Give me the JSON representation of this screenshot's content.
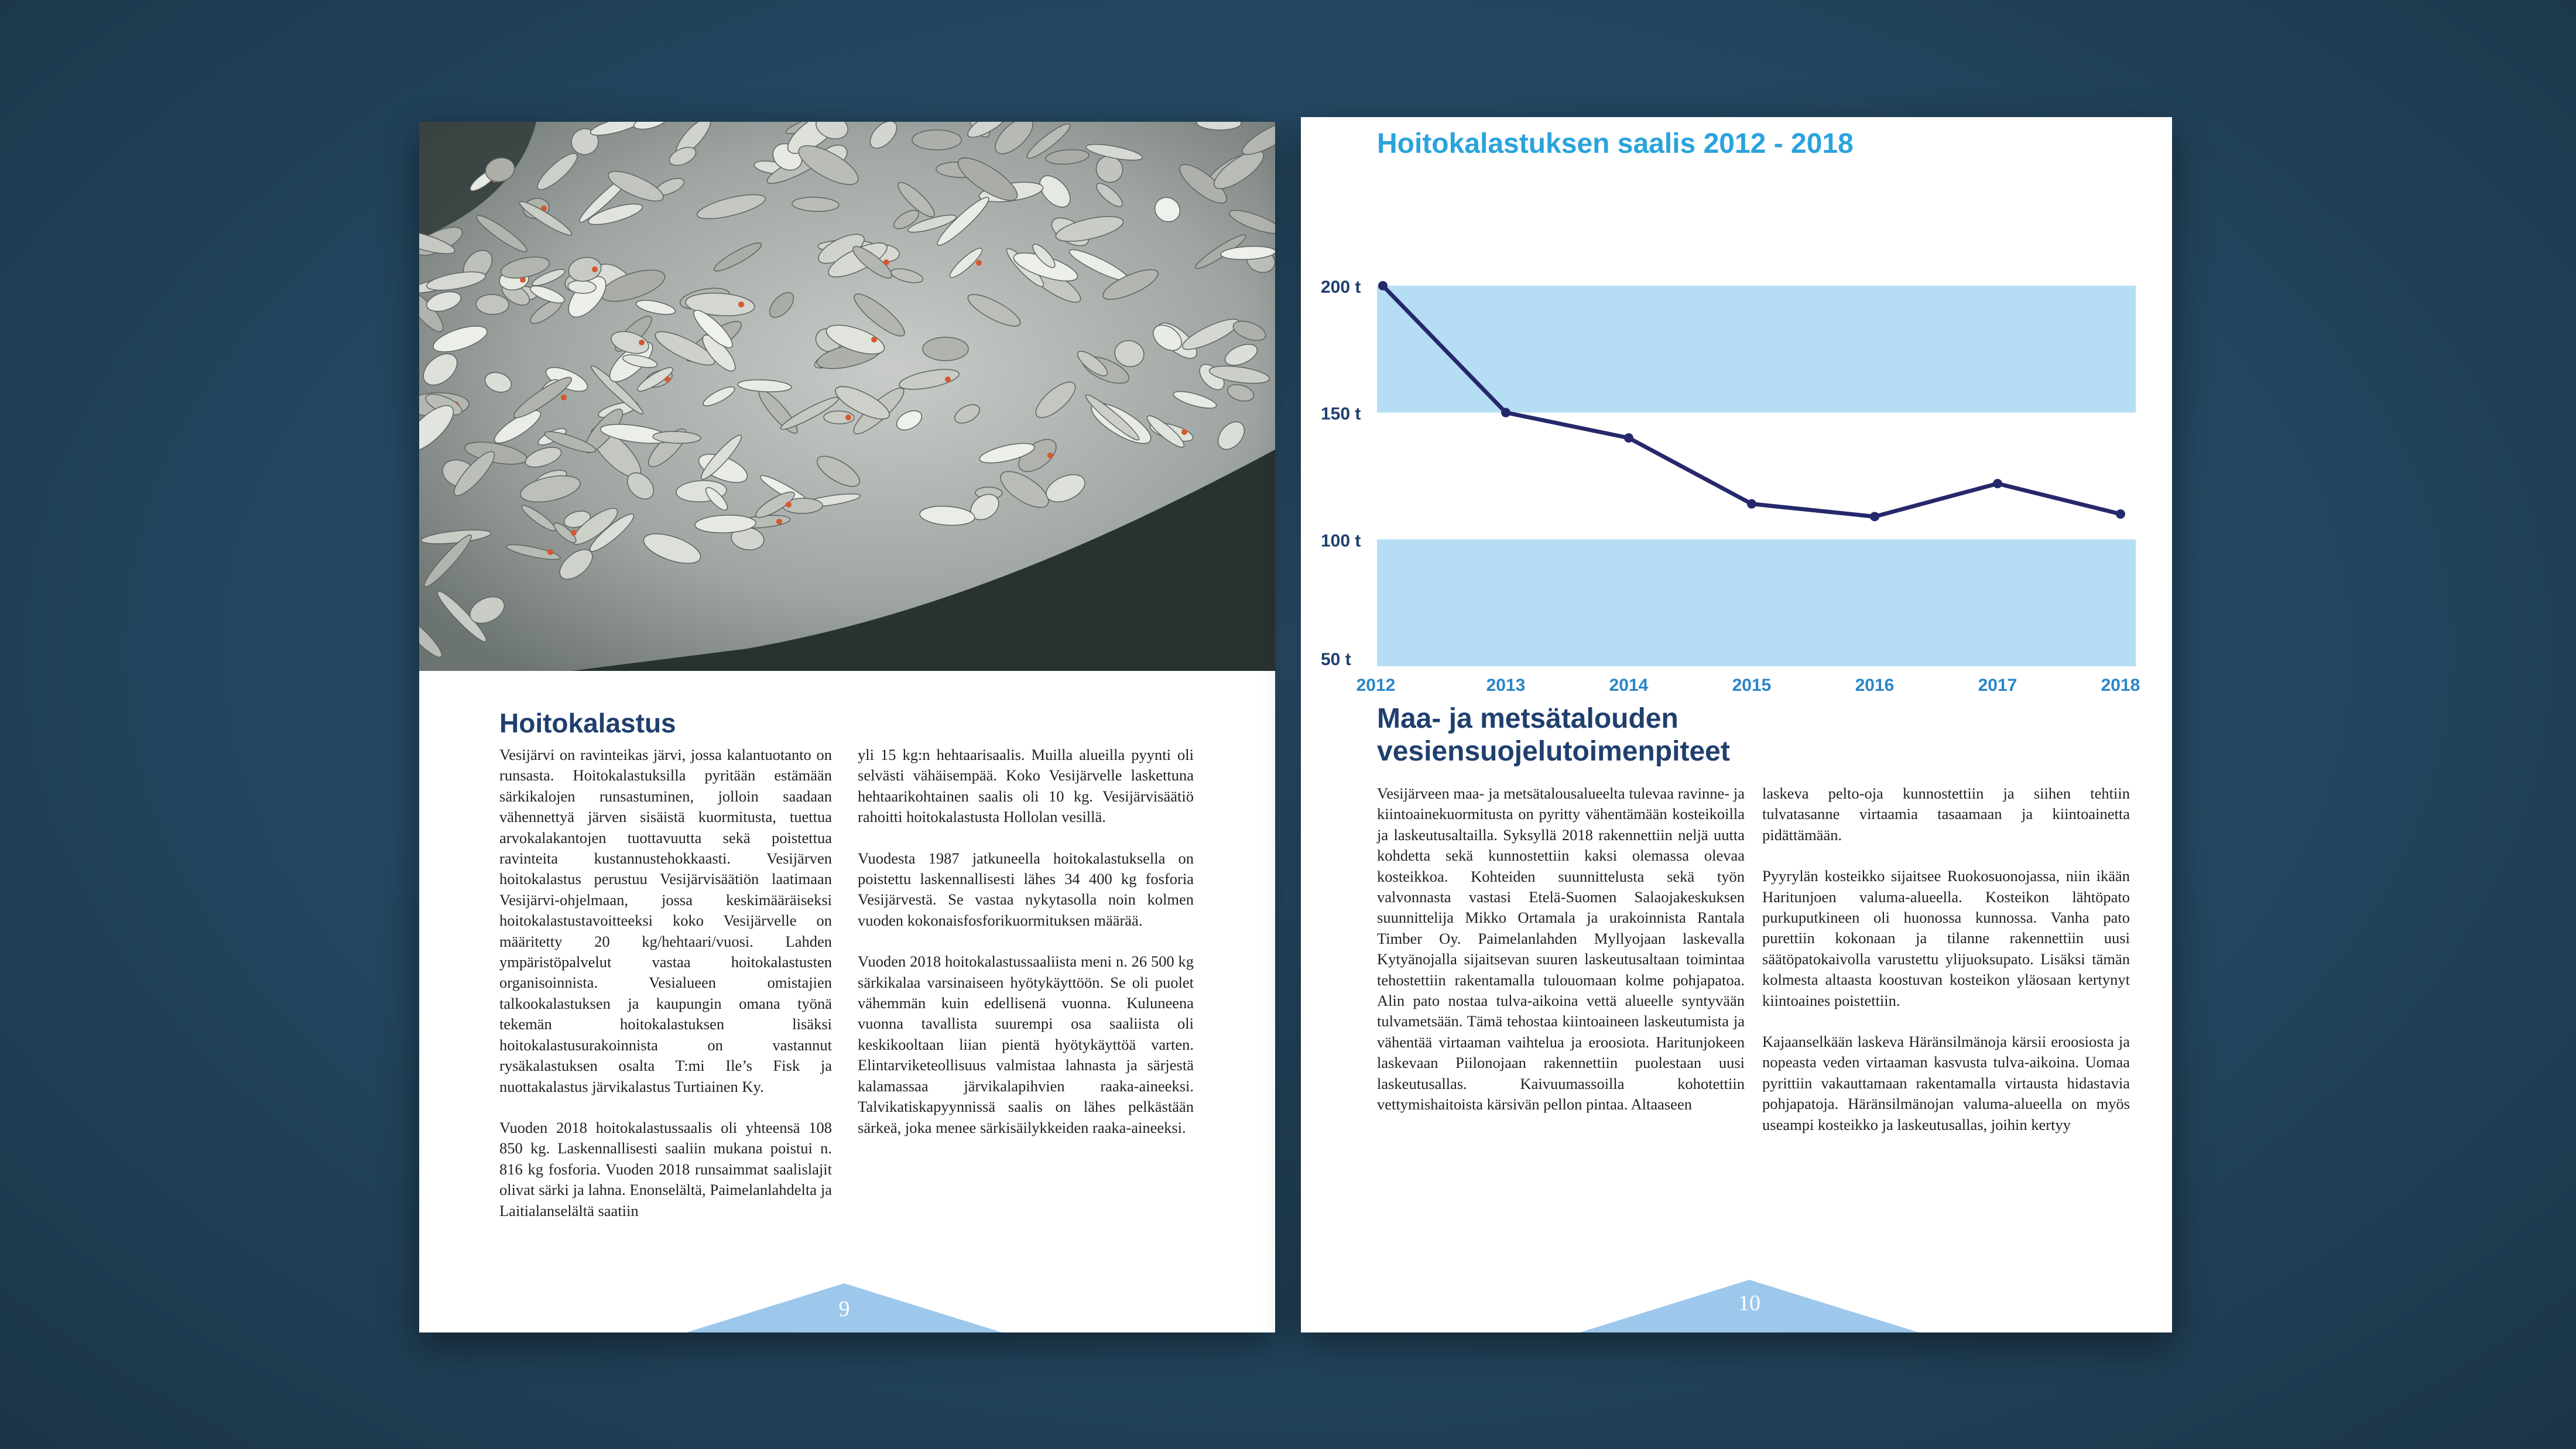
{
  "left_page": {
    "heading": "Hoitokalastus",
    "photo_description_icon": "fish-catch-photo",
    "col1": [
      "Vesijärvi on ravinteikas järvi, jossa kalantuotanto on runsasta. Hoitokalastuksilla pyritään estämään särkikalojen runsastuminen, jolloin saadaan vähennettyä järven sisäistä kuormitusta, tuettua arvokalakantojen tuottavuutta sekä poistettua ravinteita kustannustehokkaasti. Vesijärven hoitokalastus perustuu Vesijärvisäätiön laatimaan Vesijärvi-ohjelmaan, jossa keskimääräiseksi hoitokalastustavoitteeksi koko Vesijärvelle on määritetty 20 kg/hehtaari/vuosi. Lahden ympäristöpalvelut vastaa hoitokalastusten organisoinnista. Vesialueen omistajien talkookalastuksen ja kaupungin omana työnä tekemän hoitokalastuksen lisäksi hoitokalastusurakoinnista on vastannut rysäkalastuksen osalta T:mi Ile’s Fisk ja nuottakalastus järvikalastus Turtiainen Ky.",
      "Vuoden 2018 hoitokalastussaalis oli yhteensä 108 850 kg. Laskennallisesti saaliin mukana poistui n. 816 kg fosforia. Vuoden 2018 runsaimmat saalislajit olivat särki ja lahna. Enonselältä, Paimelanlahdelta ja Laitialanselältä saatiin"
    ],
    "col2": [
      "yli 15 kg:n hehtaarisaalis. Muilla alueilla pyynti oli selvästi vähäisempää. Koko Vesijärvelle laskettuna hehtaarikohtainen saalis oli 10 kg. Vesijärvisäätiö rahoitti hoitokalastusta Hollolan vesillä.",
      "Vuodesta 1987 jatkuneella hoitokalastuksella on poistettu laskennallisesti lähes 34 400 kg fosforia Vesijärvestä. Se vastaa nykytasolla noin kolmen vuoden kokonaisfosforikuormituksen määrää.",
      "Vuoden 2018 hoitokalastussaaliista meni n. 26 500 kg särkikalaa varsinaiseen hyötykäyttöön. Se oli puolet vähemmän kuin edellisenä vuonna. Kuluneena vuonna tavallista suurempi osa saaliista oli keskikooltaan liian pientä hyötykäyttöä varten. Elintarviketeollisuus valmistaa lahnasta ja särjestä kalamassaa järvikalapihvien raaka-aineeksi. Talvikatiskapyynnissä saalis on lähes pelkästään särkeä, joka menee särkisäilykkeiden raaka-aineeksi."
    ],
    "page_number": "9"
  },
  "right_page": {
    "heading_line1": "Maa- ja metsätalouden",
    "heading_line2": "vesiensuojelutoimenpiteet",
    "col1": [
      "Vesijärveen maa- ja metsätalousalueelta tulevaa ravinne- ja kiintoainekuormitusta on pyritty vähentämään kosteikoilla ja laskeutusaltailla. Syksyllä 2018 rakennettiin neljä uutta kohdetta sekä kunnostettiin kaksi olemassa olevaa kosteikkoa. Kohteiden suunnittelusta sekä työn valvonnasta vastasi Etelä-Suomen Salaojakeskuksen suunnittelija Mikko Ortamala ja urakoinnista Rantala Timber Oy. Paimelanlahden Myllyojaan laskevalla Kytyänojalla sijaitsevan suuren laskeutusaltaan toimintaa tehostettiin rakentamalla tulouomaan kolme pohjapatoa. Alin pato nostaa tulva-aikoina vettä alueelle syntyvään tulvametsään. Tämä tehostaa kiintoaineen laskeutumista ja vähentää virtaaman vaihtelua ja eroosiota. Haritunjokeen laskevaan Piilonojaan rakennettiin puolestaan uusi laskeutusallas. Kaivuumassoilla kohotettiin vettymishaitoista kärsivän pellon pintaa. Altaaseen"
    ],
    "col2": [
      "laskeva pelto-oja kunnostettiin ja siihen tehtiin tulvatasanne virtaamia tasaamaan ja kiintoainetta pidättämään.",
      "Pyyrylän kosteikko sijaitsee Ruokosuonojassa, niin ikään Haritunjoen valuma-alueella. Kosteikon lähtöpato purkuputkineen oli huonossa kunnossa. Vanha pato purettiin kokonaan ja tilanne rakennettiin uusi säätöpatokaivolla varustettu ylijuoksupato. Lisäksi tämän kolmesta altaasta koostuvan kosteikon yläosaan kertynyt kiintoaines poistettiin.",
      "Kajaanselkään laskeva Häränsilmänoja kärsii eroosiosta ja nopeasta veden virtaaman kasvusta tulva-aikoina. Uomaa pyrittiin vakauttamaan rakentamalla virtausta hidastavia pohjapatoja. Häränsilmänojan valuma-alueella on myös useampi kosteikko ja laskeutusallas, joihin kertyy"
    ],
    "page_number": "10"
  },
  "chart_data": {
    "type": "line",
    "title": "Hoitokalastuksen saalis 2012 - 2018",
    "x": [
      "2012",
      "2013",
      "2014",
      "2015",
      "2016",
      "2017",
      "2018"
    ],
    "series": [
      {
        "values": [
          200,
          150,
          140,
          114,
          109,
          122,
          110
        ]
      }
    ],
    "y_ticks": [
      "200 t",
      "150 t",
      "100 t",
      "50 t"
    ],
    "y_tick_values": [
      200,
      150,
      100,
      50
    ],
    "ylim": [
      50,
      200
    ],
    "bands": [
      [
        150,
        200
      ],
      [
        50,
        100
      ]
    ],
    "colors": {
      "line": "#25286a",
      "band": "#b5def5",
      "tick_y": "#1f3f6e",
      "tick_x": "#2a86c8",
      "title": "#2aa3dc"
    }
  }
}
